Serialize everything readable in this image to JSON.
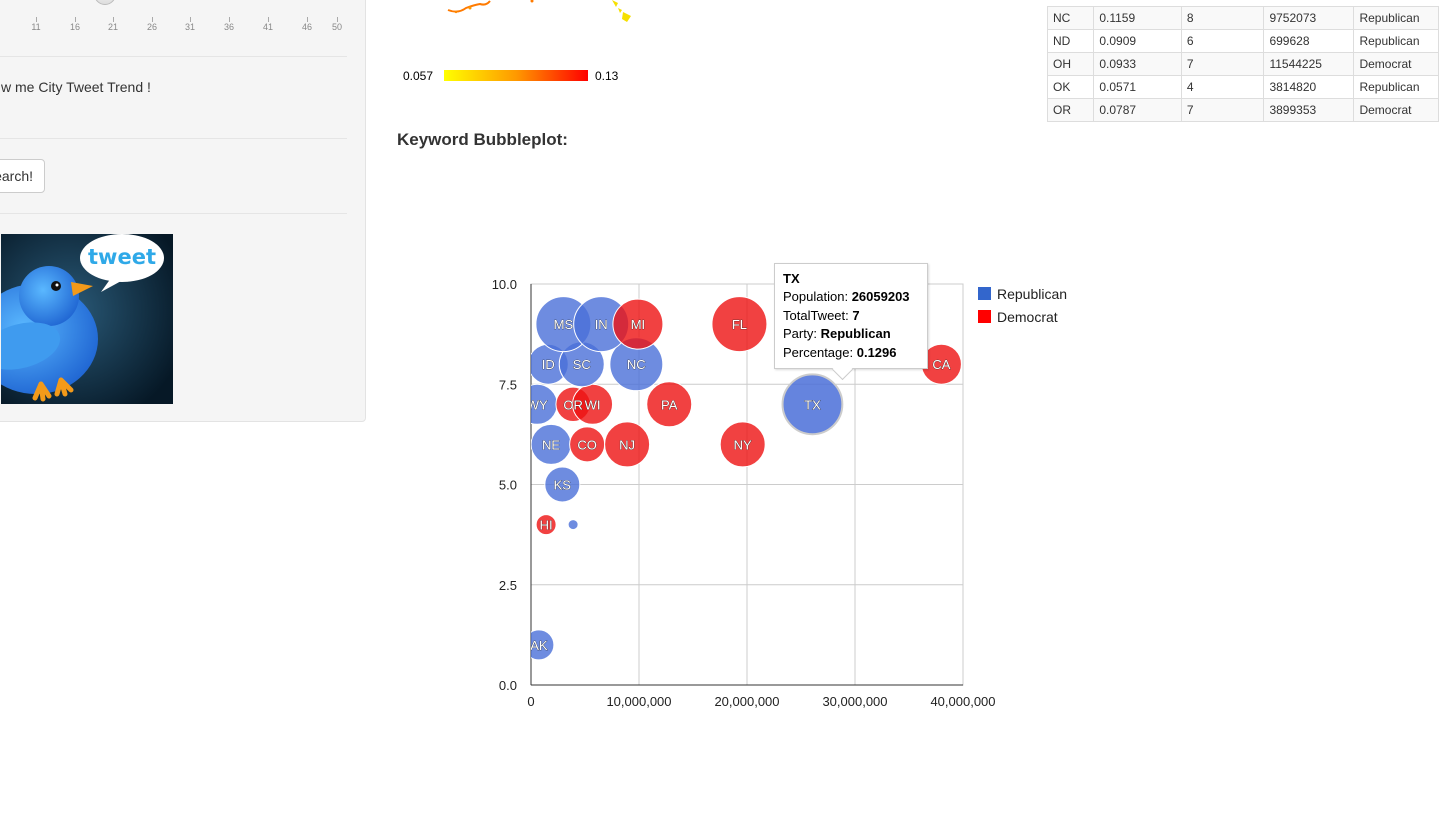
{
  "sidebar": {
    "slider": {
      "ticks": [
        "11",
        "16",
        "21",
        "26",
        "31",
        "36",
        "41",
        "46",
        "50"
      ],
      "value": 21
    },
    "checkbox_label": "w me City Tweet Trend !",
    "search_button": "Search!"
  },
  "map_legend": {
    "low": "0.057",
    "high": "0.13"
  },
  "section_title": "Keyword Bubbleplot:",
  "table": {
    "rows": [
      [
        "NC",
        "0.1159",
        "8",
        "9752073",
        "Republican"
      ],
      [
        "ND",
        "0.0909",
        "6",
        "699628",
        "Republican"
      ],
      [
        "OH",
        "0.0933",
        "7",
        "11544225",
        "Democrat"
      ],
      [
        "OK",
        "0.0571",
        "4",
        "3814820",
        "Republican"
      ],
      [
        "OR",
        "0.0787",
        "7",
        "3899353",
        "Democrat"
      ]
    ]
  },
  "colors": {
    "republican": "#3366cc",
    "democrat": "#dc3912",
    "rep_bubble": "#4a6fd8",
    "dem_bubble": "#ee1111"
  },
  "chart_data": {
    "type": "bubble",
    "xlabel": "",
    "ylabel": "",
    "xlim": [
      0,
      40000000
    ],
    "ylim": [
      0,
      10
    ],
    "x_ticks": [
      "0",
      "10,000,000",
      "20,000,000",
      "30,000,000",
      "40,000,000"
    ],
    "y_ticks": [
      "0.0",
      "2.5",
      "5.0",
      "7.5",
      "10.0"
    ],
    "legend": [
      "Republican",
      "Democrat"
    ],
    "legend_position": "right",
    "points": [
      {
        "label": "AK",
        "x": 730000,
        "y": 1,
        "party": "Republican",
        "size": 0.07
      },
      {
        "label": "HI",
        "x": 1400000,
        "y": 4,
        "party": "Democrat",
        "size": 0.05
      },
      {
        "label": "",
        "x": 3900000,
        "y": 4,
        "party": "Republican",
        "size": 0.03
      },
      {
        "label": "KS",
        "x": 2900000,
        "y": 5,
        "party": "Republican",
        "size": 0.08
      },
      {
        "label": "NE",
        "x": 1860000,
        "y": 6,
        "party": "Republican",
        "size": 0.09
      },
      {
        "label": "CO",
        "x": 5200000,
        "y": 6,
        "party": "Democrat",
        "size": 0.08
      },
      {
        "label": "NJ",
        "x": 8900000,
        "y": 6,
        "party": "Democrat",
        "size": 0.1
      },
      {
        "label": "NY",
        "x": 19600000,
        "y": 6,
        "party": "Democrat",
        "size": 0.1
      },
      {
        "label": "WY",
        "x": 580000,
        "y": 7,
        "party": "Republican",
        "size": 0.09
      },
      {
        "label": "OR",
        "x": 3900000,
        "y": 7,
        "party": "Democrat",
        "size": 0.0787
      },
      {
        "label": "WI",
        "x": 5700000,
        "y": 7,
        "party": "Democrat",
        "size": 0.09
      },
      {
        "label": "PA",
        "x": 12800000,
        "y": 7,
        "party": "Democrat",
        "size": 0.1
      },
      {
        "label": "TX",
        "x": 26059203,
        "y": 7,
        "party": "Republican",
        "size": 0.1296
      },
      {
        "label": "ID",
        "x": 1600000,
        "y": 8,
        "party": "Republican",
        "size": 0.09
      },
      {
        "label": "SC",
        "x": 4700000,
        "y": 8,
        "party": "Republican",
        "size": 0.1
      },
      {
        "label": "NC",
        "x": 9752073,
        "y": 8,
        "party": "Republican",
        "size": 0.1159
      },
      {
        "label": "CA",
        "x": 38000000,
        "y": 8,
        "party": "Democrat",
        "size": 0.09
      },
      {
        "label": "MS",
        "x": 3000000,
        "y": 9,
        "party": "Republican",
        "size": 0.12
      },
      {
        "label": "IN",
        "x": 6500000,
        "y": 9,
        "party": "Republican",
        "size": 0.12
      },
      {
        "label": "MI",
        "x": 9900000,
        "y": 9,
        "party": "Democrat",
        "size": 0.11
      },
      {
        "label": "FL",
        "x": 19300000,
        "y": 9,
        "party": "Democrat",
        "size": 0.12
      }
    ],
    "tooltip": {
      "state": "TX",
      "population_label": "Population:",
      "population": "26059203",
      "tweets_label": "TotalTweet:",
      "tweets": "7",
      "party_label": "Party:",
      "party": "Republican",
      "pct_label": "Percentage:",
      "pct": "0.1296"
    }
  }
}
